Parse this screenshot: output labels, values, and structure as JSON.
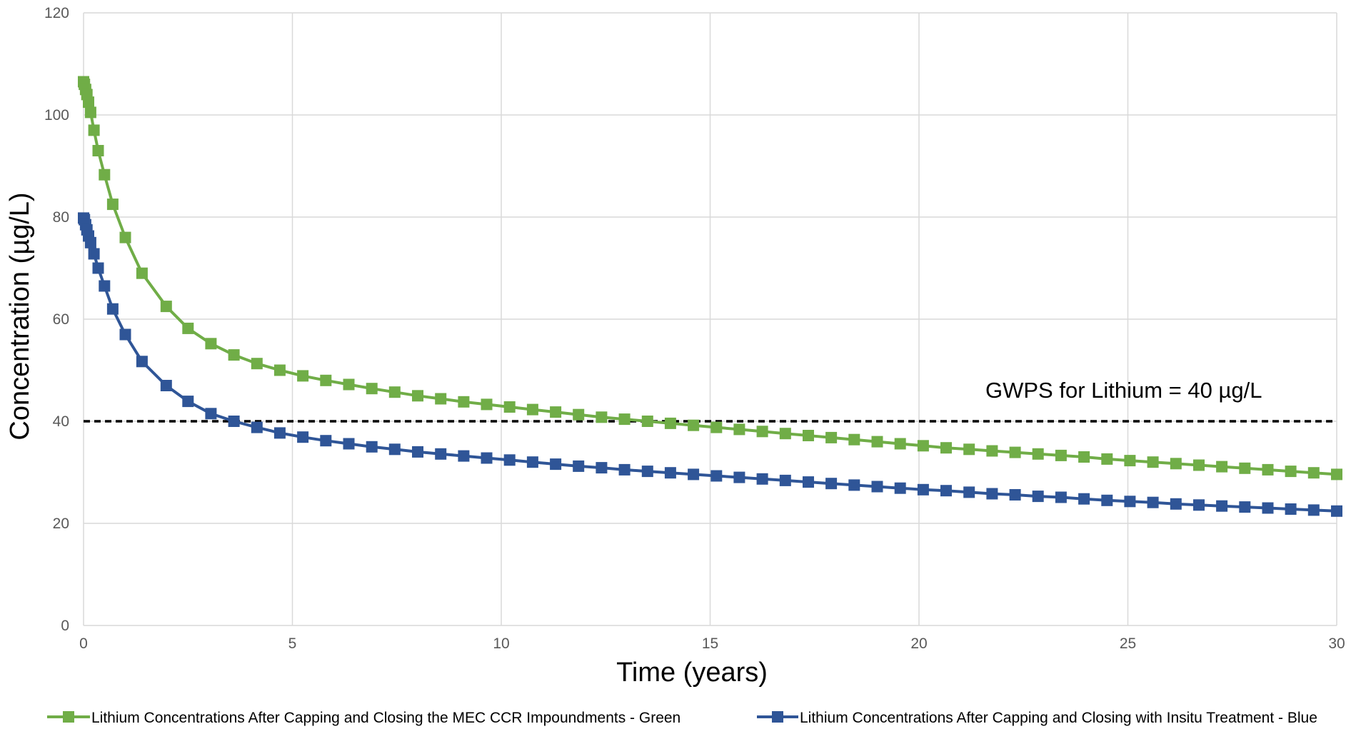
{
  "chart_data": {
    "type": "line",
    "xlabel": "Time (years)",
    "ylabel": "Concentration (µg/L)",
    "xlim": [
      0,
      30
    ],
    "ylim": [
      0,
      120
    ],
    "xticks": [
      0,
      5,
      10,
      15,
      20,
      25,
      30
    ],
    "yticks": [
      0,
      20,
      40,
      60,
      80,
      100,
      120
    ],
    "grid": true,
    "legend_position": "bottom",
    "annotation": "GWPS for Lithium = 40 µg/L",
    "threshold": {
      "y": 40,
      "style": "dashed",
      "color": "#000000"
    },
    "series": [
      {
        "name": "Lithium Concentrations After Capping and Closing the MEC CCR Impoundments - Green",
        "color": "#70ad47",
        "marker": "square",
        "x": [
          0,
          0.02,
          0.05,
          0.08,
          0.12,
          0.17,
          0.25,
          0.35,
          0.5,
          0.7,
          1.0,
          1.4,
          1.98,
          2.5,
          3.05,
          3.6,
          4.15,
          4.7,
          5.25,
          5.8,
          6.35,
          6.9,
          7.45,
          8.0,
          8.55,
          9.1,
          9.65,
          10.2,
          10.75,
          11.3,
          11.85,
          12.4,
          12.95,
          13.5,
          14.05,
          14.6,
          15.15,
          15.7,
          16.25,
          16.8,
          17.35,
          17.9,
          18.45,
          19.0,
          19.55,
          20.1,
          20.65,
          21.2,
          21.75,
          22.3,
          22.85,
          23.4,
          23.95,
          24.5,
          25.05,
          25.6,
          26.15,
          26.7,
          27.25,
          27.8,
          28.35,
          28.9,
          29.45,
          30.0
        ],
        "y": [
          106.5,
          106.0,
          105.0,
          104.0,
          102.5,
          100.5,
          97.0,
          93.0,
          88.3,
          82.5,
          76.0,
          69.0,
          62.5,
          58.2,
          55.2,
          53.0,
          51.3,
          50.0,
          48.9,
          48.0,
          47.2,
          46.4,
          45.7,
          45.0,
          44.4,
          43.8,
          43.3,
          42.8,
          42.3,
          41.8,
          41.3,
          40.8,
          40.4,
          40.0,
          39.6,
          39.2,
          38.8,
          38.4,
          38.0,
          37.6,
          37.2,
          36.8,
          36.4,
          36.0,
          35.6,
          35.2,
          34.8,
          34.5,
          34.2,
          33.9,
          33.6,
          33.3,
          33.0,
          32.6,
          32.3,
          32.0,
          31.7,
          31.4,
          31.1,
          30.8,
          30.5,
          30.2,
          29.9,
          29.6
        ]
      },
      {
        "name": "Lithium Concentrations After Capping and Closing with Insitu Treatment - Blue",
        "color": "#2f5597",
        "marker": "square",
        "x": [
          0,
          0.02,
          0.05,
          0.08,
          0.12,
          0.17,
          0.25,
          0.35,
          0.5,
          0.7,
          1.0,
          1.4,
          1.98,
          2.5,
          3.05,
          3.6,
          4.15,
          4.7,
          5.25,
          5.8,
          6.35,
          6.9,
          7.45,
          8.0,
          8.55,
          9.1,
          9.65,
          10.2,
          10.75,
          11.3,
          11.85,
          12.4,
          12.95,
          13.5,
          14.05,
          14.6,
          15.15,
          15.7,
          16.25,
          16.8,
          17.35,
          17.9,
          18.45,
          19.0,
          19.55,
          20.1,
          20.65,
          21.2,
          21.75,
          22.3,
          22.85,
          23.4,
          23.95,
          24.5,
          25.05,
          25.6,
          26.15,
          26.7,
          27.25,
          27.8,
          28.35,
          28.9,
          29.45,
          30.0
        ],
        "y": [
          79.8,
          79.5,
          78.5,
          77.5,
          76.3,
          75.0,
          72.8,
          70.0,
          66.5,
          62.0,
          57.0,
          51.7,
          47.0,
          43.9,
          41.5,
          40.0,
          38.8,
          37.7,
          36.9,
          36.2,
          35.6,
          35.0,
          34.5,
          34.0,
          33.6,
          33.2,
          32.8,
          32.4,
          32.0,
          31.6,
          31.2,
          30.9,
          30.5,
          30.2,
          29.9,
          29.6,
          29.3,
          29.0,
          28.7,
          28.4,
          28.1,
          27.8,
          27.5,
          27.2,
          26.9,
          26.6,
          26.4,
          26.1,
          25.8,
          25.6,
          25.3,
          25.1,
          24.8,
          24.5,
          24.3,
          24.1,
          23.8,
          23.6,
          23.4,
          23.2,
          23.0,
          22.8,
          22.6,
          22.4
        ]
      }
    ]
  }
}
